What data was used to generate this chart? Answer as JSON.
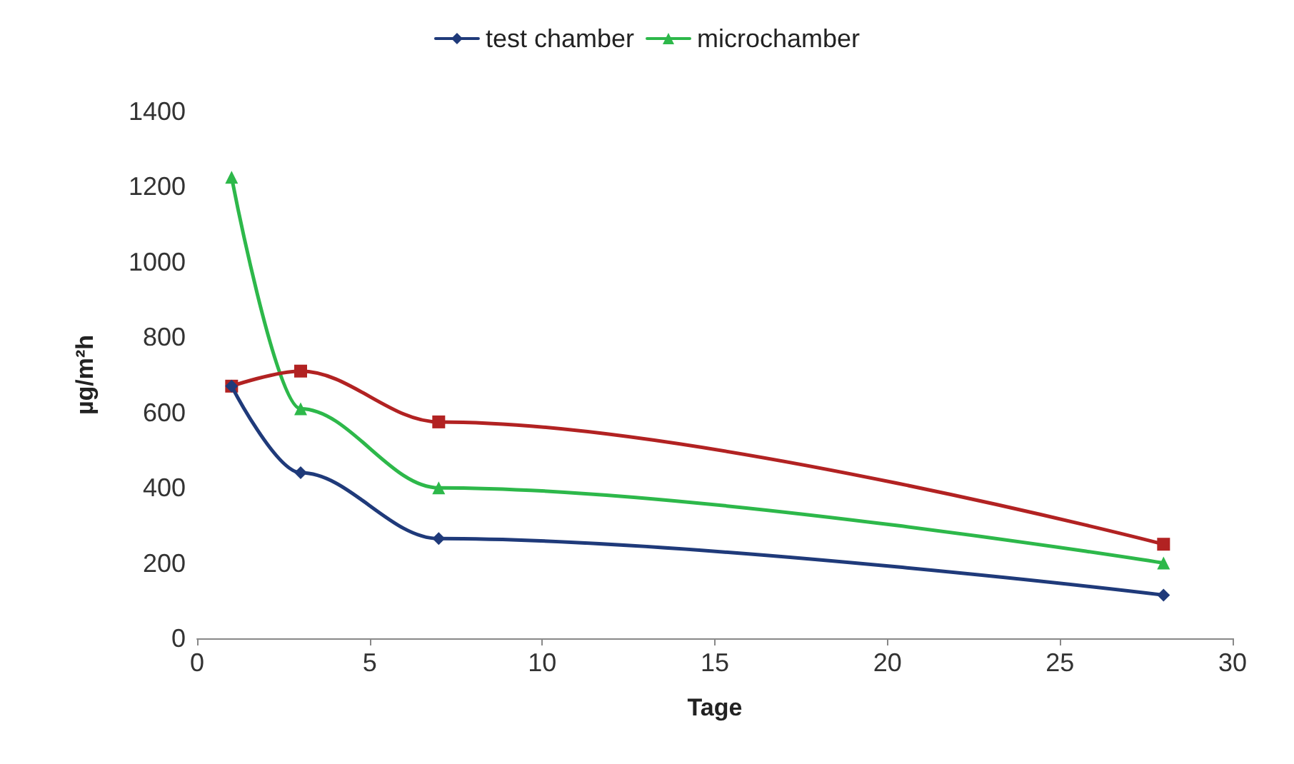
{
  "chart_data": {
    "type": "line",
    "xlabel": "Tage",
    "ylabel": "µg/m²h",
    "x": [
      1,
      3,
      7,
      28
    ],
    "series": [
      {
        "name": "test chamber",
        "color": "#1f3a7a",
        "marker": "diamond",
        "values": [
          670,
          440,
          265,
          115
        ]
      },
      {
        "color": "#b22222",
        "marker": "square",
        "values": [
          670,
          710,
          575,
          250
        ]
      },
      {
        "name": "microchamber",
        "color": "#2db84a",
        "marker": "triangle",
        "values": [
          1225,
          610,
          400,
          200
        ]
      }
    ],
    "xlim": [
      0,
      30
    ],
    "xticks": [
      0,
      5,
      10,
      15,
      20,
      25,
      30
    ],
    "ylim": [
      0,
      1400
    ],
    "yticks": [
      0,
      200,
      400,
      600,
      800,
      1000,
      1200,
      1400
    ],
    "grid": false,
    "legend": "top",
    "line_style": "solid"
  }
}
